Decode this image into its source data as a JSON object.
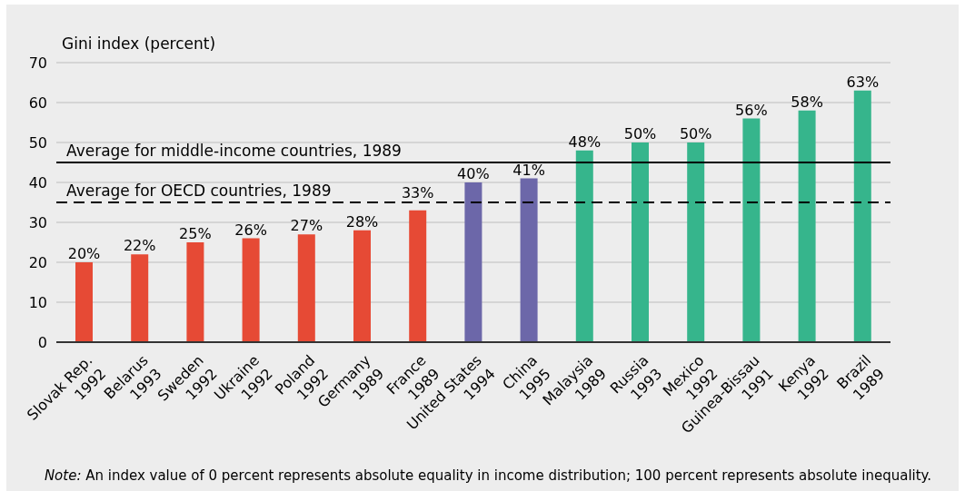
{
  "chart_data": {
    "type": "bar",
    "ylabel": "Gini index (percent)",
    "categories": [
      "Slovak Rep.\n1992",
      "Belarus\n1993",
      "Sweden\n1992",
      "Ukraine\n1992",
      "Poland\n1992",
      "Germany\n1989",
      "France\n1989",
      "United States\n1994",
      "China\n1995",
      "Malaysia\n1989",
      "Russia\n1993",
      "Mexico\n1992",
      "Guinea-Bissau\n1991",
      "Kenya\n1992",
      "Brazil\n1989"
    ],
    "values": [
      20,
      22,
      25,
      26,
      27,
      28,
      33,
      40,
      41,
      48,
      50,
      50,
      56,
      58,
      63
    ],
    "colors": [
      "#e64a35",
      "#e64a35",
      "#e64a35",
      "#e64a35",
      "#e64a35",
      "#e64a35",
      "#e64a35",
      "#6c67a9",
      "#6c67a9",
      "#36b58c",
      "#36b58c",
      "#36b58c",
      "#36b58c",
      "#36b58c",
      "#36b58c"
    ],
    "value_labels": [
      "20%",
      "22%",
      "25%",
      "26%",
      "27%",
      "28%",
      "33%",
      "40%",
      "41%",
      "48%",
      "50%",
      "50%",
      "56%",
      "58%",
      "63%"
    ],
    "ylim": [
      0,
      70
    ],
    "yticks": [
      0,
      10,
      20,
      30,
      40,
      50,
      60,
      70
    ],
    "grid": "y",
    "ref_lines": [
      {
        "axis": "y",
        "value": 45,
        "label": "Average for middle-income countries, 1989",
        "color": "#000000",
        "line_style": "solid"
      },
      {
        "axis": "y",
        "value": 35,
        "label": "Average for OECD countries, 1989",
        "color": "#000000",
        "line_style": "dashed"
      }
    ],
    "annotations": [
      "Note: An index value of 0 percent represents absolute equality in income distribution; 100 percent represents absolute inequality."
    ]
  }
}
